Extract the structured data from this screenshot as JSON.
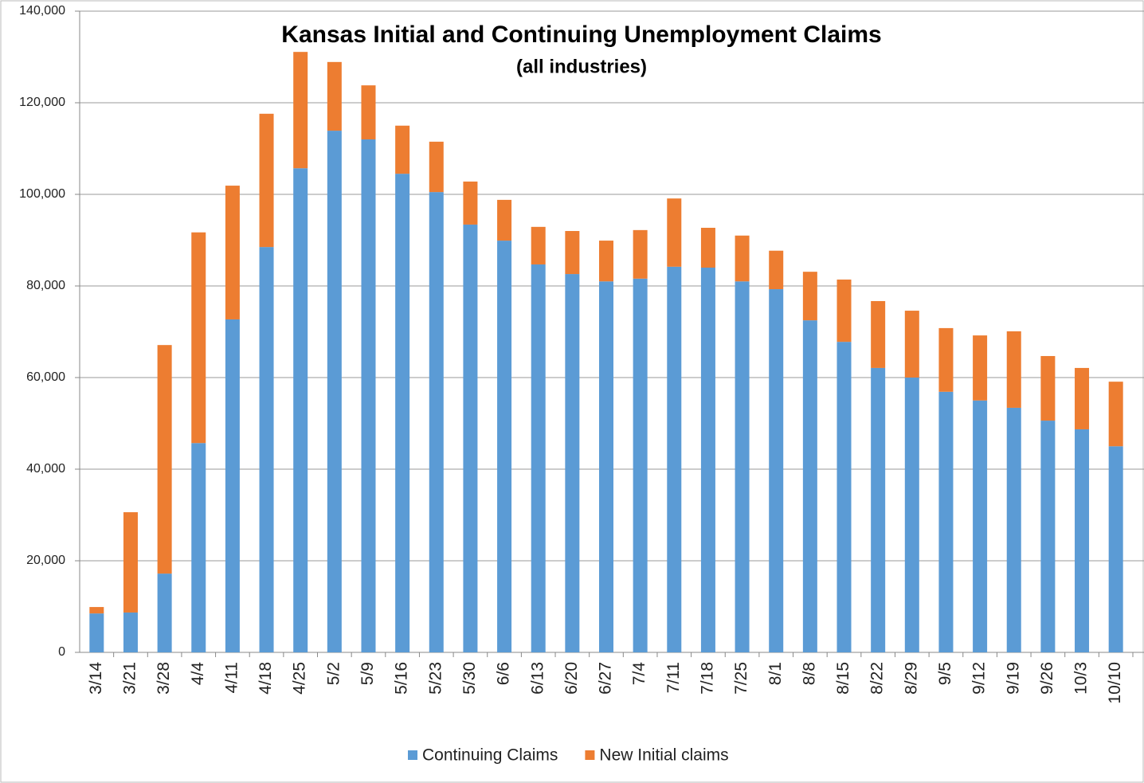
{
  "chart_data": {
    "type": "stacked_bar",
    "title": "Kansas Initial and Continuing Unemployment Claims",
    "subtitle": "(all industries)",
    "categories": [
      "3/14",
      "3/21",
      "3/28",
      "4/4",
      "4/11",
      "4/18",
      "4/25",
      "5/2",
      "5/9",
      "5/16",
      "5/23",
      "5/30",
      "6/6",
      "6/13",
      "6/20",
      "6/27",
      "7/4",
      "7/11",
      "7/18",
      "7/25",
      "8/1",
      "8/8",
      "8/15",
      "8/22",
      "8/29",
      "9/5",
      "9/12",
      "9/19",
      "9/26",
      "10/3",
      "10/10"
    ],
    "series": [
      {
        "name": "Continuing Claims",
        "color": "#5b9bd5",
        "values": [
          8500,
          8700,
          17200,
          45700,
          72700,
          88500,
          105700,
          113900,
          112000,
          104500,
          100500,
          93400,
          89900,
          84700,
          82600,
          81000,
          81600,
          84200,
          84000,
          81000,
          79300,
          72500,
          67800,
          62100,
          60000,
          56900,
          55000,
          53400,
          50600,
          48700,
          45000
        ]
      },
      {
        "name": "New Initial claims",
        "color": "#ed7d31",
        "values": [
          1400,
          21900,
          49900,
          46000,
          29200,
          29100,
          25400,
          15000,
          11800,
          10500,
          11000,
          9400,
          8900,
          8200,
          9400,
          8900,
          10600,
          14900,
          8700,
          10000,
          8400,
          10600,
          13600,
          14600,
          14600,
          13900,
          14200,
          16700,
          14100,
          13400,
          14100
        ]
      }
    ],
    "ylim": [
      0,
      140000
    ],
    "yticks": [
      0,
      {
        "value": 20000,
        "label": "20,000"
      },
      {
        "value": 40000,
        "label": "40,000"
      },
      {
        "value": 60000,
        "label": "60,000"
      },
      {
        "value": 80000,
        "label": "80,000"
      },
      {
        "value": 100000,
        "label": "100,000"
      },
      {
        "value": 120000,
        "label": "120,000"
      },
      {
        "value": 140000,
        "label": "140,000"
      }
    ],
    "grid": true,
    "legend": "bottom"
  }
}
